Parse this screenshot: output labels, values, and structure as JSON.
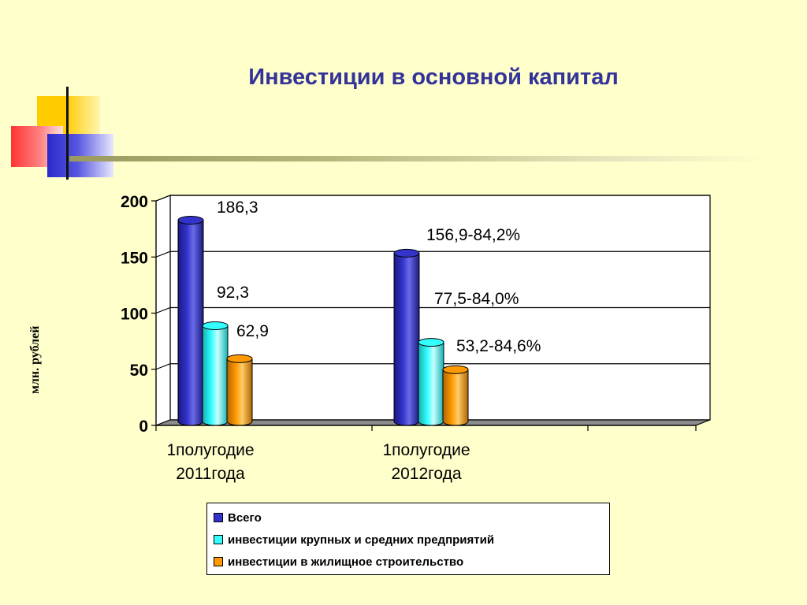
{
  "slide": {
    "title": "Инвестиции в основной капитал",
    "unit_label": "млн. рублей"
  },
  "colors": {
    "background": "#FFFFCC",
    "title": "#333399",
    "series_total": "#3333CC",
    "series_large": "#33FFFF",
    "series_housing": "#FF9900"
  },
  "chart_data": {
    "type": "bar",
    "title": "",
    "xlabel": "",
    "ylabel": "млн. рублей",
    "ylim": [
      0,
      200
    ],
    "yticks": [
      "0",
      "50",
      "100",
      "150",
      "200"
    ],
    "categories": [
      "1полугодие 2011года",
      "1полугодие 2012года"
    ],
    "category_lines": [
      [
        "1полугодие",
        "2011года"
      ],
      [
        "1полугодие",
        "2012года"
      ]
    ],
    "series": [
      {
        "name": "Всего",
        "values": [
          186.3,
          156.9
        ],
        "labels": [
          "186,3",
          "156,9-84,2%"
        ]
      },
      {
        "name": "инвестиции крупных и средних предприятий",
        "values": [
          92.3,
          77.5
        ],
        "labels": [
          "92,3",
          "77,5-84,0%"
        ]
      },
      {
        "name": "инвестиции в жилищное строительство",
        "values": [
          62.9,
          53.2
        ],
        "labels": [
          "62,9",
          "53,2-84,6%"
        ]
      }
    ],
    "grid": true,
    "legend": "bottom"
  }
}
